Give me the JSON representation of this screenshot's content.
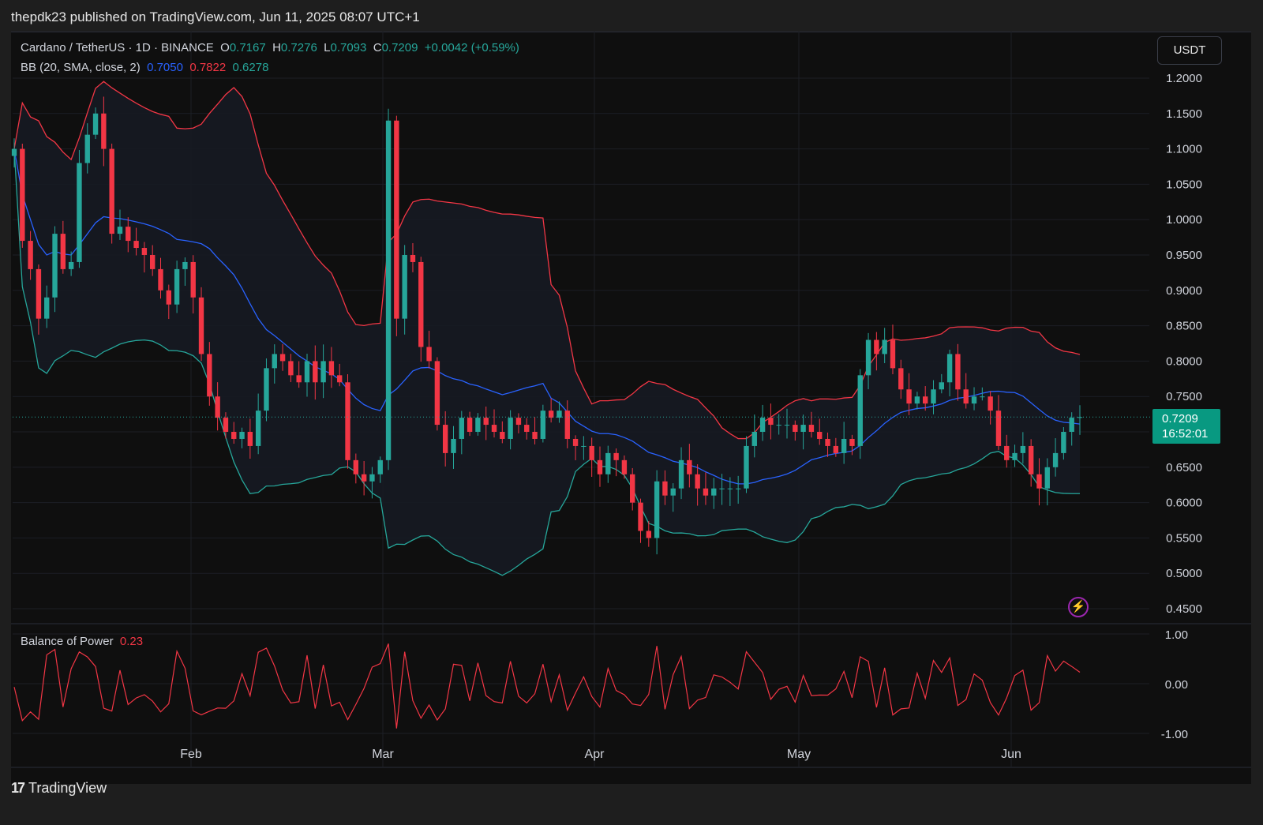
{
  "header": {
    "published": "thepdk23 published on TradingView.com, Jun 11, 2025 08:07 UTC+1"
  },
  "symbol": {
    "title": "Cardano / TetherUS · 1D · BINANCE",
    "o_label": "O",
    "o": "0.7167",
    "h_label": "H",
    "h": "0.7276",
    "l_label": "L",
    "l": "0.7093",
    "c_label": "C",
    "c": "0.7209",
    "change": "+0.0042 (+0.59%)"
  },
  "bb": {
    "label": "BB (20, SMA, close, 2)",
    "basis": "0.7050",
    "upper": "0.7822",
    "lower": "0.6278"
  },
  "currency_button": "USDT",
  "last_price": {
    "price": "0.7209",
    "countdown": "16:52:01"
  },
  "bop": {
    "label": "Balance of Power",
    "value": "0.23"
  },
  "footer": {
    "logo_mark": "17",
    "logo_text": "TradingView"
  },
  "icons": {
    "alert": "lightning-bolt-icon"
  },
  "colors": {
    "up": "#26a69a",
    "down": "#f23645",
    "basis": "#2962ff",
    "bop_line": "#f23645",
    "band_fill": "#161a22"
  },
  "chart_data": [
    {
      "type": "candlestick",
      "title": "Cardano / TetherUS · 1D · BINANCE",
      "y_axis_ticks": [
        "1.2000",
        "1.1500",
        "1.1000",
        "1.0500",
        "1.0000",
        "0.9500",
        "0.9000",
        "0.8500",
        "0.8000",
        "0.7500",
        "0.7000",
        "0.6500",
        "0.6000",
        "0.5500",
        "0.5000",
        "0.4500"
      ],
      "ylim": [
        0.44,
        1.21
      ],
      "x_axis_labels": [
        "Feb",
        "Mar",
        "Apr",
        "May",
        "Jun"
      ],
      "grid": true,
      "indicator": "Bollinger Bands (20, SMA, close, 2)",
      "closes": [
        1.1,
        0.97,
        0.93,
        0.86,
        0.89,
        0.98,
        0.93,
        0.94,
        1.08,
        1.12,
        1.15,
        1.1,
        0.98,
        0.99,
        0.97,
        0.96,
        0.95,
        0.93,
        0.9,
        0.88,
        0.93,
        0.94,
        0.89,
        0.81,
        0.75,
        0.72,
        0.7,
        0.69,
        0.7,
        0.68,
        0.73,
        0.79,
        0.81,
        0.8,
        0.78,
        0.77,
        0.8,
        0.77,
        0.8,
        0.78,
        0.77,
        0.66,
        0.64,
        0.63,
        0.64,
        0.66,
        1.14,
        0.86,
        0.95,
        0.94,
        0.82,
        0.8,
        0.71,
        0.67,
        0.69,
        0.72,
        0.7,
        0.72,
        0.71,
        0.7,
        0.69,
        0.72,
        0.71,
        0.7,
        0.69,
        0.73,
        0.72,
        0.73,
        0.69,
        0.68,
        0.68,
        0.66,
        0.64,
        0.67,
        0.66,
        0.64,
        0.6,
        0.56,
        0.55,
        0.63,
        0.61,
        0.62,
        0.66,
        0.64,
        0.62,
        0.61,
        0.62,
        0.62,
        0.62,
        0.62,
        0.68,
        0.7,
        0.72,
        0.71,
        0.71,
        0.71,
        0.7,
        0.71,
        0.7,
        0.69,
        0.68,
        0.67,
        0.69,
        0.68,
        0.78,
        0.83,
        0.81,
        0.83,
        0.79,
        0.76,
        0.74,
        0.75,
        0.74,
        0.76,
        0.77,
        0.81,
        0.76,
        0.74,
        0.75,
        0.75,
        0.73,
        0.68,
        0.66,
        0.67,
        0.68,
        0.64,
        0.62,
        0.65,
        0.67,
        0.7,
        0.72,
        0.7209
      ],
      "last": 0.7209
    },
    {
      "type": "line",
      "title": "Balance of Power",
      "y_axis_ticks": [
        "1.00",
        "0.00",
        "-1.00"
      ],
      "ylim": [
        -1,
        1
      ],
      "last": 0.23
    }
  ]
}
